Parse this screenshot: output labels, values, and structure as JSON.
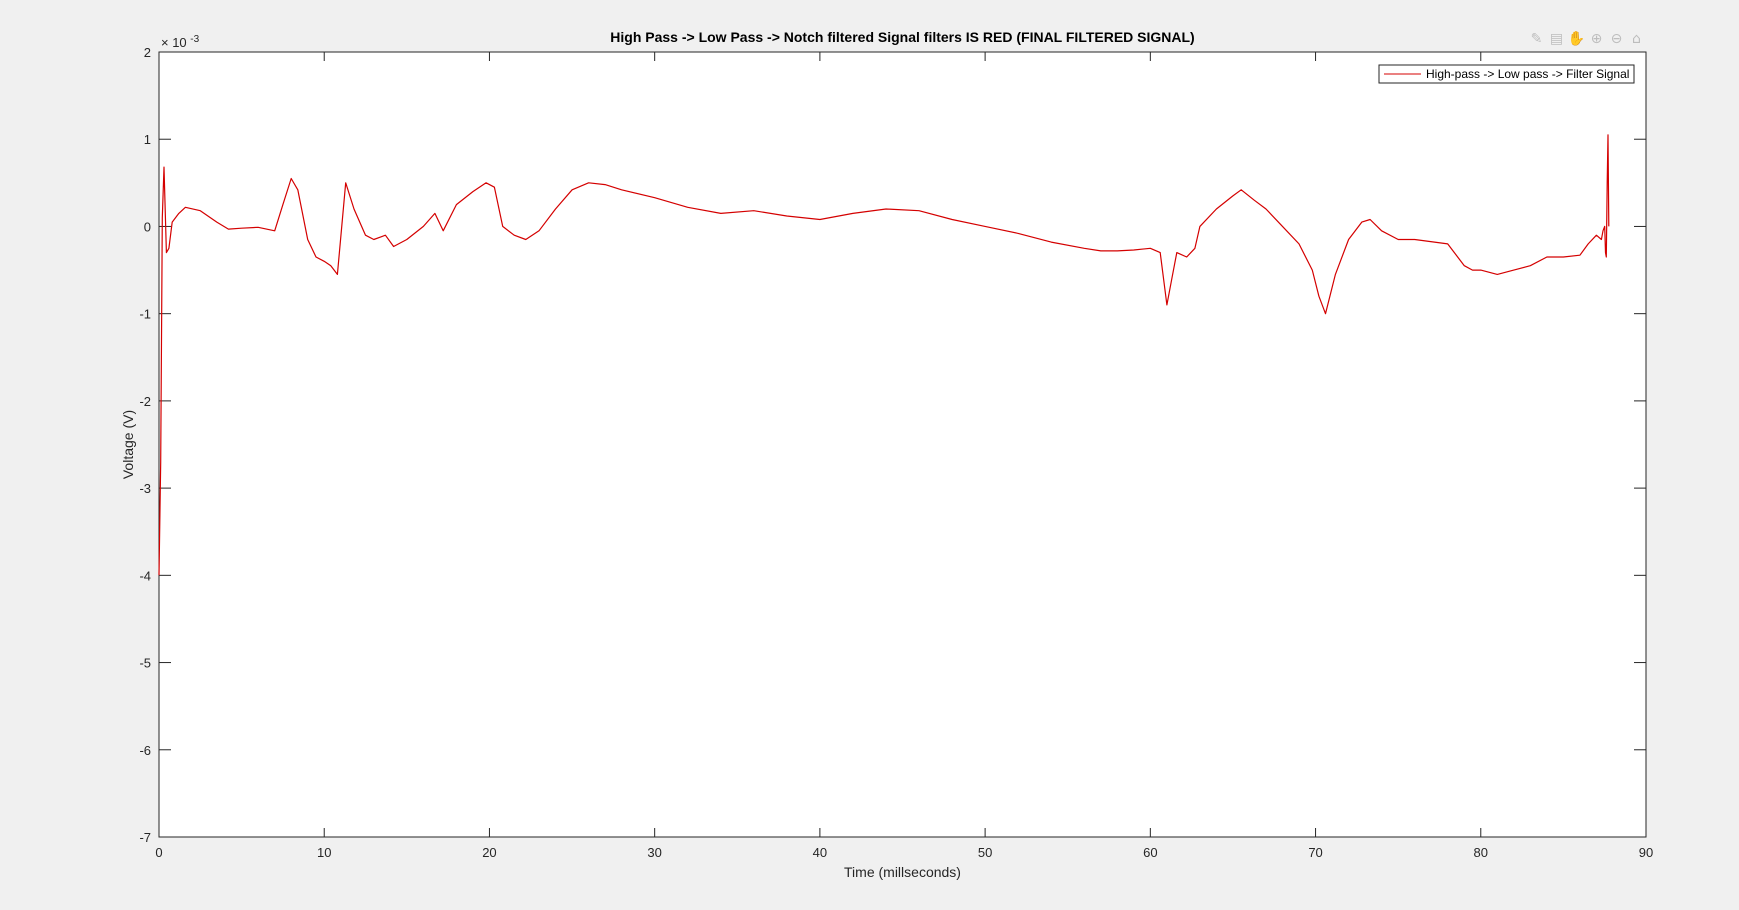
{
  "toolbar": {
    "icons": [
      "brush-icon",
      "data-tips-icon",
      "pan-icon",
      "zoom-in-icon",
      "zoom-out-icon",
      "home-icon"
    ],
    "glyphs": [
      "✎",
      "▤",
      "✋",
      "⊕",
      "⊖",
      "⌂"
    ]
  },
  "chart_data": {
    "type": "line",
    "title": "High Pass -> Low Pass -> Notch filtered Signal filters IS RED (FINAL FILTERED SIGNAL)",
    "xlabel": "Time (millseconds)",
    "ylabel": "Voltage (V)",
    "y_exponent_label": "× 10",
    "y_exponent_power": "-3",
    "xlim": [
      0,
      90
    ],
    "ylim": [
      -7,
      2
    ],
    "xticks": [
      0,
      10,
      20,
      30,
      40,
      50,
      60,
      70,
      80,
      90
    ],
    "yticks": [
      2,
      1,
      0,
      -1,
      -2,
      -3,
      -4,
      -5,
      -6,
      -7
    ],
    "legend": {
      "position": "top-right",
      "entries": [
        "High-pass -> Low pass -> Filter Signal"
      ]
    },
    "series": [
      {
        "name": "High-pass -> Low pass -> Filter Signal",
        "color": "#d40000",
        "x": [
          0,
          0.1,
          0.2,
          0.3,
          0.45,
          0.6,
          0.8,
          1.2,
          1.6,
          2.5,
          3.5,
          4.2,
          5.0,
          6.0,
          7.0,
          7.5,
          8.0,
          8.4,
          9.0,
          9.5,
          10.0,
          10.4,
          10.8,
          11.3,
          11.8,
          12.5,
          13.0,
          13.7,
          14.2,
          15.0,
          16.0,
          16.7,
          17.2,
          18.0,
          19.0,
          19.8,
          20.3,
          20.8,
          21.5,
          22.2,
          23.0,
          24.0,
          25.0,
          26.0,
          27.0,
          28.0,
          30.0,
          32.0,
          34.0,
          36.0,
          38.0,
          40.0,
          42.0,
          44.0,
          46.0,
          48.0,
          50.0,
          52.0,
          54.0,
          56.0,
          57.0,
          58.0,
          59.0,
          60.0,
          60.6,
          61.0,
          61.3,
          61.6,
          62.2,
          62.7,
          63.0,
          64.0,
          65.0,
          65.5,
          66.3,
          67.0,
          68.0,
          69.0,
          69.8,
          70.2,
          70.6,
          71.2,
          72.0,
          72.8,
          73.3,
          74.0,
          75.0,
          76.0,
          78.0,
          79.0,
          79.5,
          80.0,
          81.0,
          82.0,
          83.0,
          84.0,
          85.0,
          86.0,
          86.5,
          87.0,
          87.3,
          87.4,
          87.5,
          87.55,
          87.6,
          87.65,
          87.7,
          87.75
        ],
        "y": [
          -4.0,
          -2.7,
          0.1,
          0.68,
          -0.3,
          -0.25,
          0.05,
          0.15,
          0.22,
          0.18,
          0.05,
          -0.03,
          -0.02,
          -0.01,
          -0.05,
          0.25,
          0.55,
          0.42,
          -0.15,
          -0.35,
          -0.4,
          -0.45,
          -0.55,
          0.5,
          0.2,
          -0.1,
          -0.15,
          -0.1,
          -0.23,
          -0.15,
          0.0,
          0.15,
          -0.05,
          0.25,
          0.4,
          0.5,
          0.45,
          0.0,
          -0.1,
          -0.15,
          -0.05,
          0.2,
          0.42,
          0.5,
          0.48,
          0.42,
          0.33,
          0.22,
          0.15,
          0.18,
          0.12,
          0.08,
          0.15,
          0.2,
          0.18,
          0.08,
          0.0,
          -0.08,
          -0.18,
          -0.25,
          -0.28,
          -0.28,
          -0.27,
          -0.25,
          -0.3,
          -0.9,
          -0.6,
          -0.3,
          -0.35,
          -0.25,
          0.0,
          0.2,
          0.35,
          0.42,
          0.3,
          0.2,
          0.0,
          -0.2,
          -0.5,
          -0.8,
          -1.0,
          -0.55,
          -0.15,
          0.05,
          0.08,
          -0.05,
          -0.15,
          -0.15,
          -0.2,
          -0.45,
          -0.5,
          -0.5,
          -0.55,
          -0.5,
          -0.45,
          -0.35,
          -0.35,
          -0.33,
          -0.2,
          -0.1,
          -0.15,
          -0.05,
          0.0,
          -0.3,
          -0.35,
          0.5,
          1.05,
          0.0
        ]
      }
    ]
  }
}
